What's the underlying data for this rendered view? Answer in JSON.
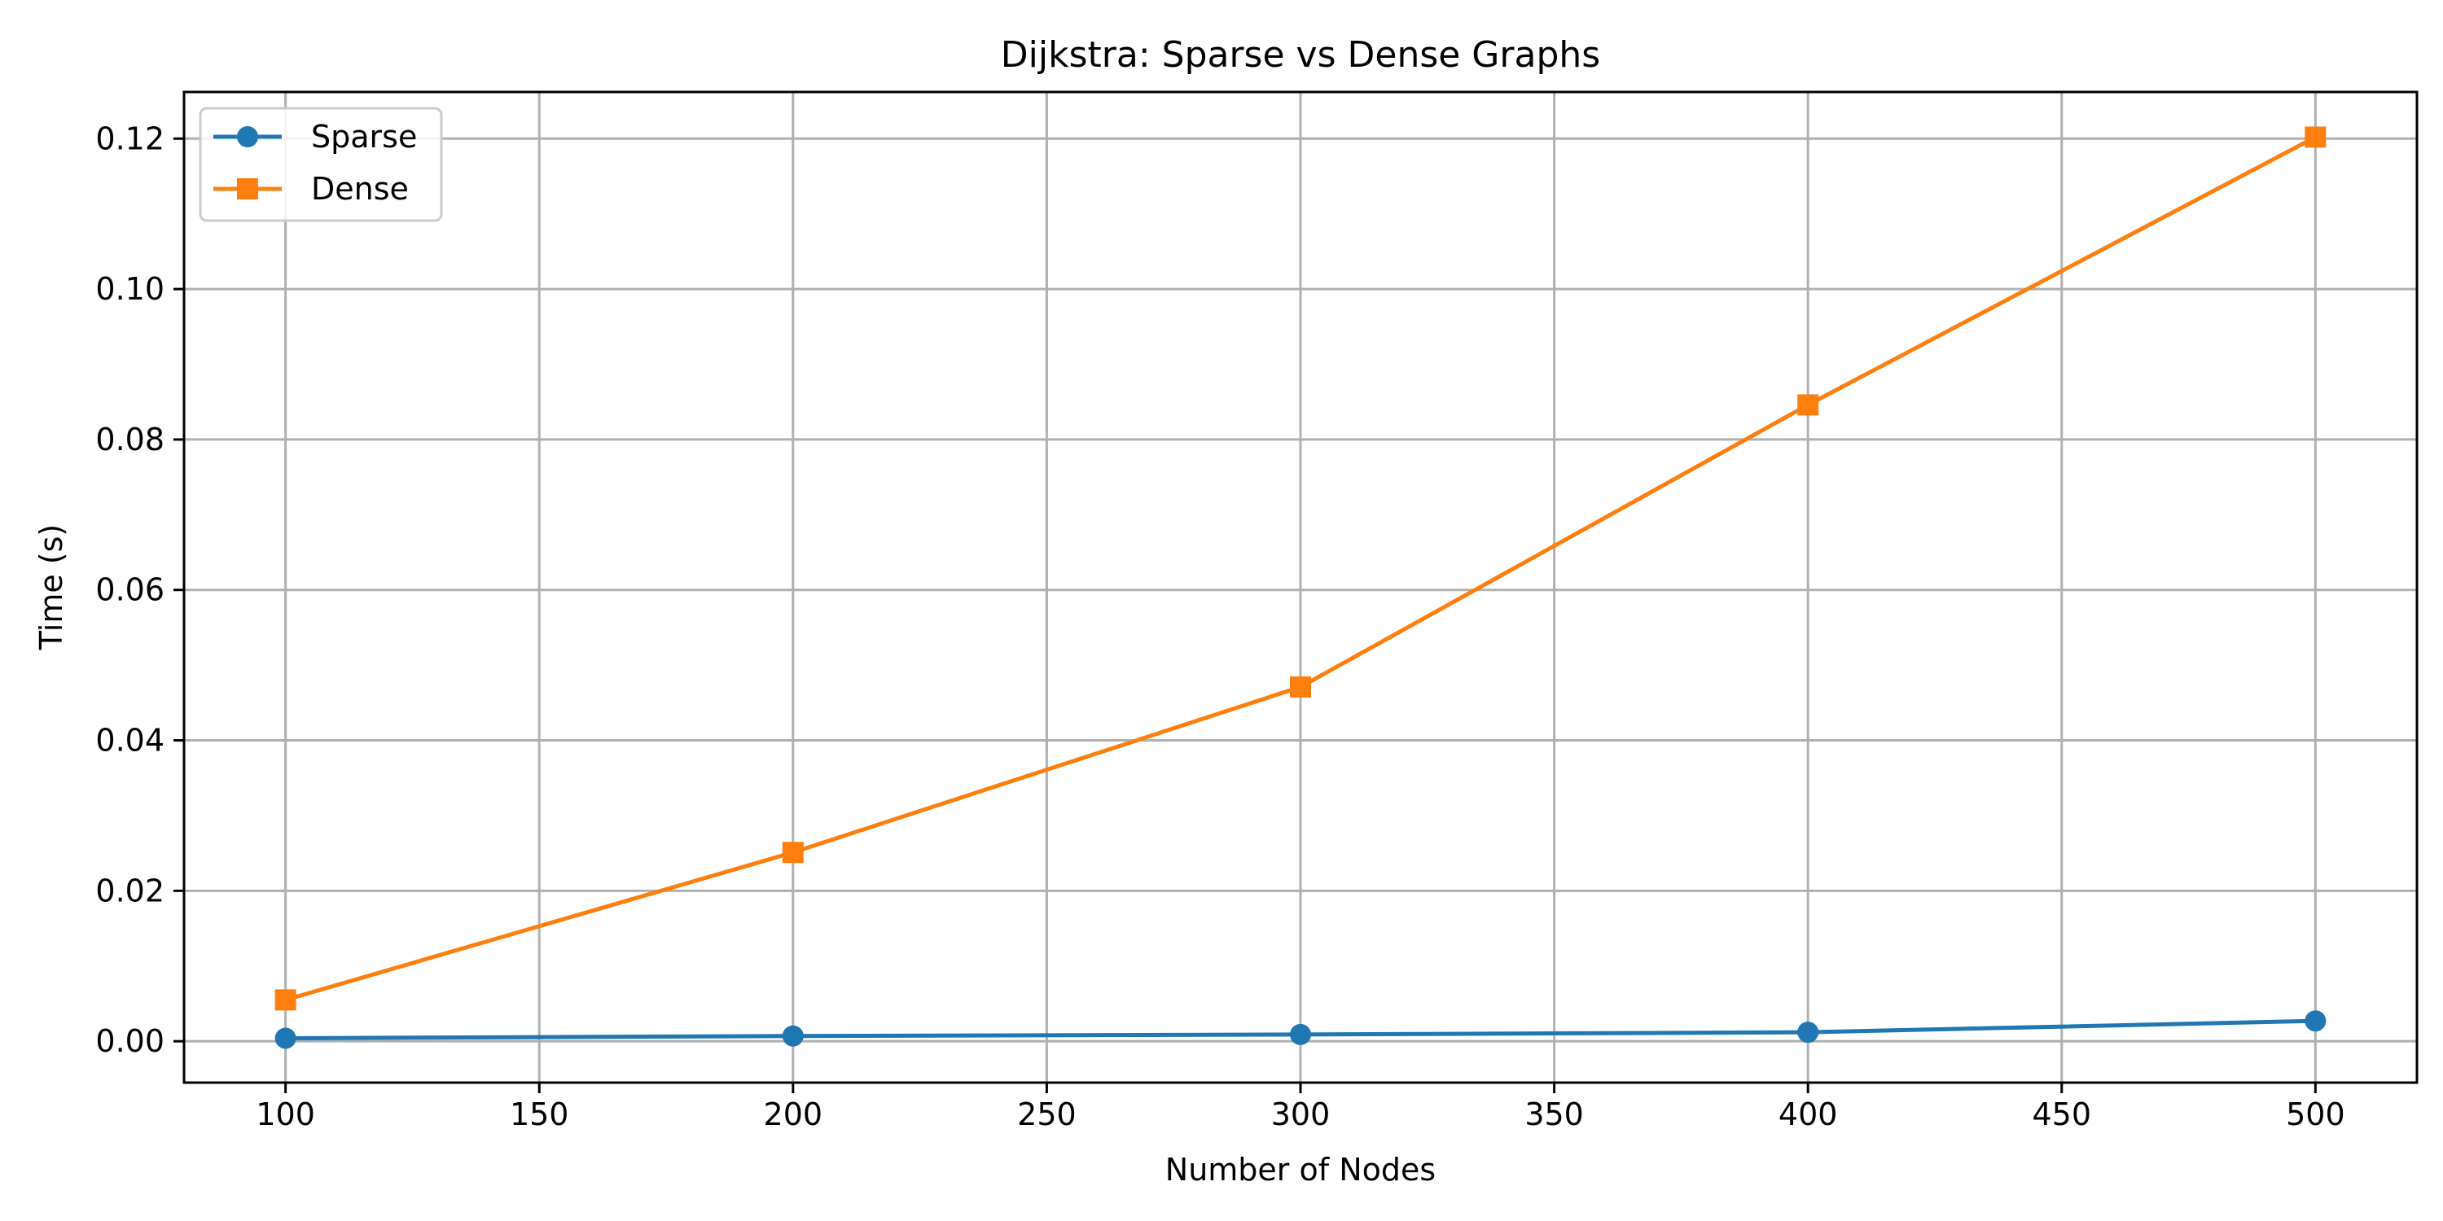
{
  "chart_data": {
    "type": "line",
    "title": "Dijkstra: Sparse vs Dense Graphs",
    "xlabel": "Number of Nodes",
    "ylabel": "Time (s)",
    "x": [
      100,
      200,
      300,
      400,
      500
    ],
    "xlim": [
      80,
      520
    ],
    "ylim": [
      -0.0055,
      0.1262
    ],
    "xticks": [
      100,
      150,
      200,
      250,
      300,
      350,
      400,
      450,
      500
    ],
    "xtick_labels": [
      "100",
      "150",
      "200",
      "250",
      "300",
      "350",
      "400",
      "450",
      "500"
    ],
    "yticks": [
      0,
      0.02,
      0.04,
      0.06,
      0.08,
      0.1,
      0.12
    ],
    "ytick_labels": [
      "0.00",
      "0.02",
      "0.04",
      "0.06",
      "0.08",
      "0.10",
      "0.12"
    ],
    "grid": true,
    "legend_position": "top-left",
    "series": [
      {
        "name": "Sparse",
        "values": [
          0.0004,
          0.0007,
          0.0009,
          0.0012,
          0.0027
        ],
        "color": "#1f77b4",
        "marker": "circle"
      },
      {
        "name": "Dense",
        "values": [
          0.0055,
          0.0251,
          0.0471,
          0.0846,
          0.1202
        ],
        "color": "#ff7f0e",
        "marker": "square"
      }
    ]
  }
}
